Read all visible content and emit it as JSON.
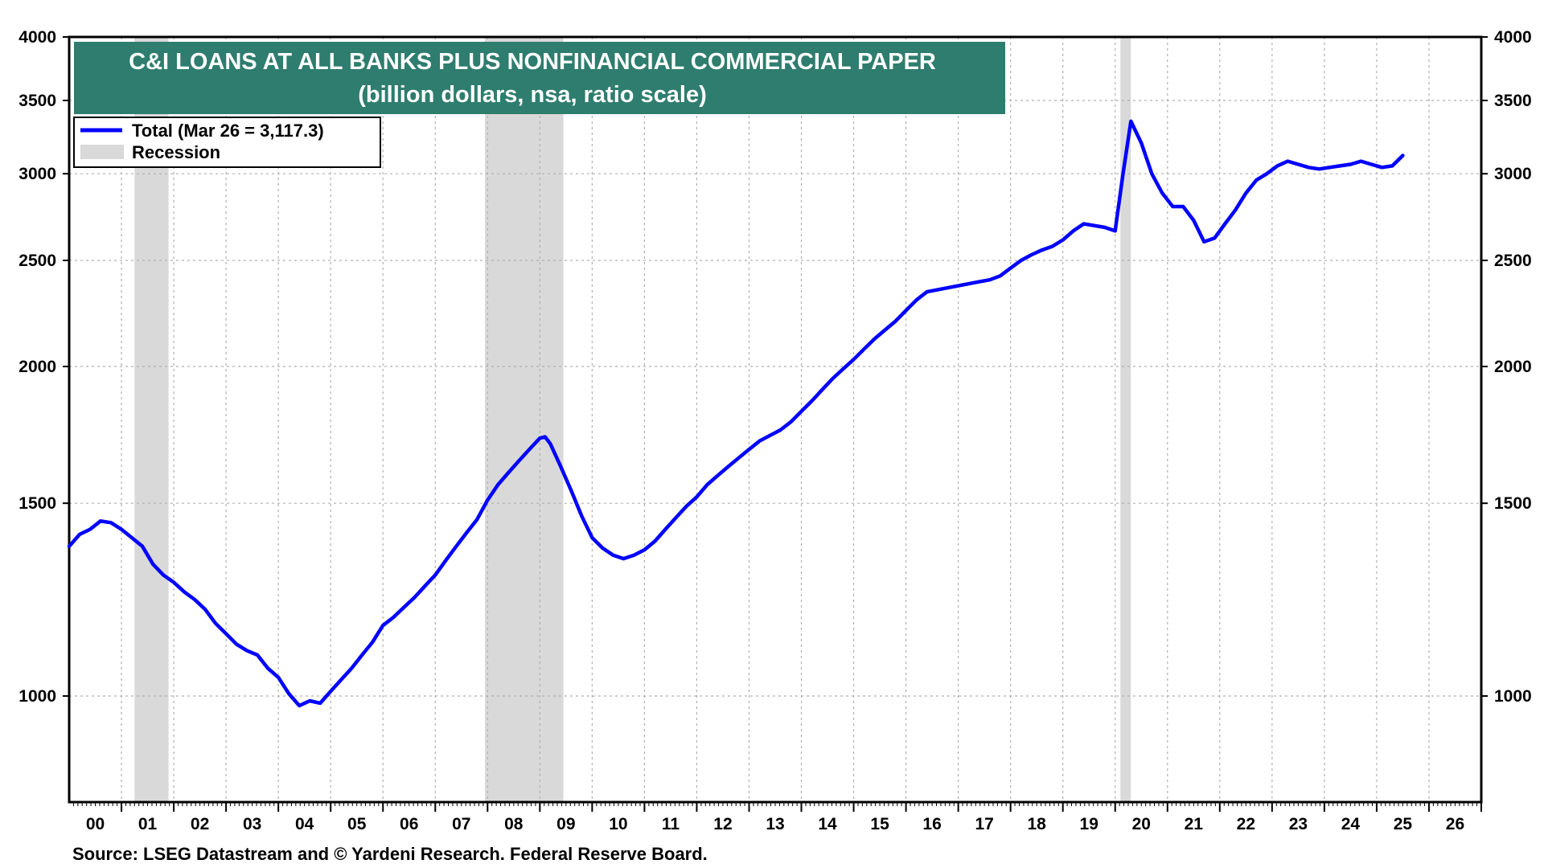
{
  "chart_data": {
    "type": "line",
    "title": "C&I LOANS AT ALL BANKS PLUS NONFINANCIAL COMMERCIAL PAPER",
    "subtitle": "(billion dollars, nsa, ratio scale)",
    "source": "Source: LSEG Datastream and © Yardeni Research. Federal Reserve Board.",
    "y_scale": "log",
    "ylim": [
      800,
      4000
    ],
    "y_ticks": [
      1000,
      1500,
      2000,
      2500,
      3000,
      3500,
      4000
    ],
    "y_tick_labels": [
      "1000",
      "1500",
      "2000",
      "2500",
      "3000",
      "3500",
      "4000"
    ],
    "xlim": [
      2000.0,
      2027.0
    ],
    "x_tick_labels": [
      "00",
      "01",
      "02",
      "03",
      "04",
      "05",
      "06",
      "07",
      "08",
      "09",
      "10",
      "11",
      "12",
      "13",
      "14",
      "15",
      "16",
      "17",
      "18",
      "19",
      "20",
      "21",
      "22",
      "23",
      "24",
      "25",
      "26"
    ],
    "grid": true,
    "legend_position": "top-left",
    "legend": [
      {
        "label": "Total  (Mar 26 = 3,117.3)",
        "kind": "line"
      },
      {
        "label": "Recession",
        "kind": "band"
      }
    ],
    "recessions": [
      [
        2001.25,
        2001.9
      ],
      [
        2007.95,
        2009.45
      ],
      [
        2020.1,
        2020.3
      ]
    ],
    "series": [
      {
        "name": "Total",
        "color": "#0000ff",
        "points": [
          [
            2000.0,
            1370
          ],
          [
            2000.2,
            1405
          ],
          [
            2000.4,
            1420
          ],
          [
            2000.6,
            1445
          ],
          [
            2000.8,
            1440
          ],
          [
            2001.0,
            1420
          ],
          [
            2001.2,
            1395
          ],
          [
            2001.4,
            1370
          ],
          [
            2001.6,
            1320
          ],
          [
            2001.8,
            1290
          ],
          [
            2002.0,
            1270
          ],
          [
            2002.2,
            1245
          ],
          [
            2002.4,
            1225
          ],
          [
            2002.6,
            1200
          ],
          [
            2002.8,
            1165
          ],
          [
            2003.0,
            1140
          ],
          [
            2003.2,
            1115
          ],
          [
            2003.4,
            1100
          ],
          [
            2003.6,
            1090
          ],
          [
            2003.8,
            1060
          ],
          [
            2004.0,
            1040
          ],
          [
            2004.2,
            1005
          ],
          [
            2004.4,
            980
          ],
          [
            2004.6,
            990
          ],
          [
            2004.8,
            985
          ],
          [
            2005.0,
            1010
          ],
          [
            2005.2,
            1035
          ],
          [
            2005.4,
            1060
          ],
          [
            2005.6,
            1090
          ],
          [
            2005.8,
            1120
          ],
          [
            2006.0,
            1160
          ],
          [
            2006.2,
            1180
          ],
          [
            2006.4,
            1205
          ],
          [
            2006.6,
            1230
          ],
          [
            2006.8,
            1260
          ],
          [
            2007.0,
            1290
          ],
          [
            2007.2,
            1330
          ],
          [
            2007.4,
            1370
          ],
          [
            2007.6,
            1410
          ],
          [
            2007.8,
            1450
          ],
          [
            2008.0,
            1510
          ],
          [
            2008.2,
            1560
          ],
          [
            2008.4,
            1600
          ],
          [
            2008.6,
            1640
          ],
          [
            2008.8,
            1680
          ],
          [
            2009.0,
            1720
          ],
          [
            2009.1,
            1725
          ],
          [
            2009.2,
            1700
          ],
          [
            2009.4,
            1620
          ],
          [
            2009.6,
            1540
          ],
          [
            2009.8,
            1460
          ],
          [
            2010.0,
            1395
          ],
          [
            2010.2,
            1365
          ],
          [
            2010.4,
            1345
          ],
          [
            2010.6,
            1335
          ],
          [
            2010.8,
            1345
          ],
          [
            2011.0,
            1360
          ],
          [
            2011.2,
            1385
          ],
          [
            2011.4,
            1420
          ],
          [
            2011.6,
            1455
          ],
          [
            2011.8,
            1490
          ],
          [
            2012.0,
            1520
          ],
          [
            2012.2,
            1560
          ],
          [
            2012.4,
            1590
          ],
          [
            2012.6,
            1620
          ],
          [
            2012.8,
            1650
          ],
          [
            2013.0,
            1680
          ],
          [
            2013.2,
            1710
          ],
          [
            2013.4,
            1730
          ],
          [
            2013.6,
            1750
          ],
          [
            2013.8,
            1780
          ],
          [
            2014.0,
            1820
          ],
          [
            2014.2,
            1860
          ],
          [
            2014.4,
            1905
          ],
          [
            2014.6,
            1950
          ],
          [
            2014.8,
            1990
          ],
          [
            2015.0,
            2030
          ],
          [
            2015.2,
            2075
          ],
          [
            2015.4,
            2120
          ],
          [
            2015.6,
            2160
          ],
          [
            2015.8,
            2200
          ],
          [
            2016.0,
            2250
          ],
          [
            2016.2,
            2300
          ],
          [
            2016.4,
            2340
          ],
          [
            2016.6,
            2350
          ],
          [
            2016.8,
            2360
          ],
          [
            2017.0,
            2370
          ],
          [
            2017.2,
            2380
          ],
          [
            2017.4,
            2390
          ],
          [
            2017.6,
            2400
          ],
          [
            2017.8,
            2420
          ],
          [
            2018.0,
            2460
          ],
          [
            2018.2,
            2500
          ],
          [
            2018.4,
            2530
          ],
          [
            2018.6,
            2555
          ],
          [
            2018.8,
            2575
          ],
          [
            2019.0,
            2610
          ],
          [
            2019.2,
            2660
          ],
          [
            2019.4,
            2700
          ],
          [
            2019.6,
            2690
          ],
          [
            2019.8,
            2680
          ],
          [
            2020.0,
            2660
          ],
          [
            2020.15,
            3000
          ],
          [
            2020.3,
            3350
          ],
          [
            2020.5,
            3200
          ],
          [
            2020.7,
            3000
          ],
          [
            2020.9,
            2880
          ],
          [
            2021.1,
            2800
          ],
          [
            2021.3,
            2800
          ],
          [
            2021.5,
            2720
          ],
          [
            2021.7,
            2600
          ],
          [
            2021.9,
            2620
          ],
          [
            2022.1,
            2700
          ],
          [
            2022.3,
            2780
          ],
          [
            2022.5,
            2880
          ],
          [
            2022.7,
            2960
          ],
          [
            2022.9,
            3000
          ],
          [
            2023.1,
            3050
          ],
          [
            2023.3,
            3080
          ],
          [
            2023.5,
            3060
          ],
          [
            2023.7,
            3040
          ],
          [
            2023.9,
            3030
          ],
          [
            2024.1,
            3040
          ],
          [
            2024.3,
            3050
          ],
          [
            2024.5,
            3060
          ],
          [
            2024.7,
            3080
          ],
          [
            2024.9,
            3060
          ],
          [
            2025.1,
            3040
          ],
          [
            2025.3,
            3050
          ],
          [
            2025.5,
            3117.3
          ]
        ]
      }
    ]
  },
  "colors": {
    "title_band": "#2e7d6e",
    "recession_band": "#d9d9d9",
    "grid": "#b0b0b0",
    "series": "#0000ff"
  }
}
